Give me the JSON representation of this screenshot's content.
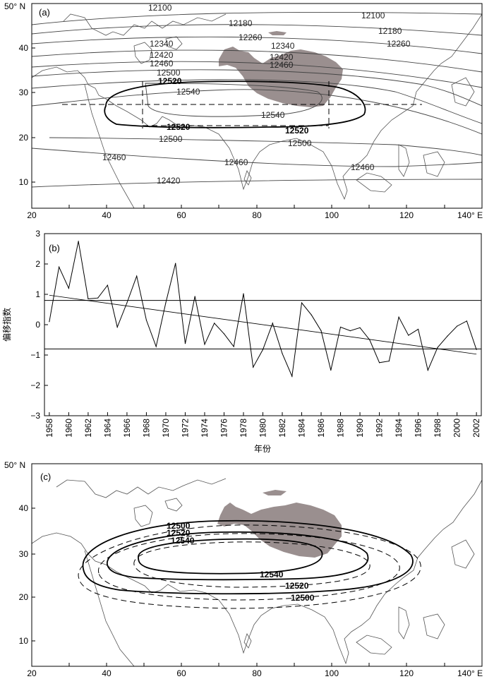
{
  "panel_a": {
    "label": "(a)",
    "y_axis_top_label": "50° N",
    "x_axis_right_label": "140° E",
    "x_ticks": [
      "20",
      "40",
      "60",
      "80",
      "100",
      "120"
    ],
    "y_ticks": [
      "10",
      "20",
      "30",
      "40"
    ],
    "contour_labels": [
      "12100",
      "12100",
      "12180",
      "12180",
      "12260",
      "12260",
      "12340",
      "12340",
      "12420",
      "12420",
      "12460",
      "12460",
      "12500",
      "12520",
      "12540",
      "12540",
      "12520",
      "12520",
      "12500",
      "12500",
      "12460",
      "12460",
      "12460",
      "12420"
    ]
  },
  "panel_b": {
    "label": "(b)",
    "ylabel": "偏移指数",
    "xlabel": "年份",
    "x_ticks": [
      "1958",
      "1960",
      "1962",
      "1964",
      "1966",
      "1968",
      "1970",
      "1972",
      "1974",
      "1976",
      "1978",
      "1980",
      "1982",
      "1984",
      "1986",
      "1988",
      "1990",
      "1992",
      "1994",
      "1996",
      "1998",
      "2000",
      "2002"
    ],
    "y_ticks": [
      "3",
      "2",
      "1",
      "0",
      "−1",
      "−2",
      "−3"
    ]
  },
  "panel_c": {
    "label": "(c)",
    "y_axis_top_label": "50° N",
    "x_axis_right_label": "140° E",
    "x_ticks": [
      "20",
      "40",
      "60",
      "80",
      "100",
      "120"
    ],
    "y_ticks": [
      "10",
      "20",
      "30",
      "40"
    ],
    "contour_labels": [
      "12500",
      "12520",
      "12540",
      "12540",
      "12520",
      "12500"
    ]
  },
  "chart_data": [
    {
      "type": "line",
      "panel": "b",
      "x": [
        1958,
        1959,
        1960,
        1961,
        1962,
        1963,
        1964,
        1965,
        1966,
        1967,
        1968,
        1969,
        1970,
        1971,
        1972,
        1973,
        1974,
        1975,
        1976,
        1977,
        1978,
        1979,
        1980,
        1981,
        1982,
        1983,
        1984,
        1985,
        1986,
        1987,
        1988,
        1989,
        1990,
        1991,
        1992,
        1993,
        1994,
        1995,
        1996,
        1997,
        1998,
        1999,
        2000,
        2001,
        2002
      ],
      "series": [
        {
          "values": [
            0.1,
            1.9,
            1.2,
            2.75,
            0.85,
            0.88,
            1.3,
            -0.08,
            0.72,
            1.6,
            0.15,
            -0.72,
            0.72,
            2.02,
            -0.62,
            0.93,
            -0.65,
            0.05,
            -0.3,
            -0.72,
            1.02,
            -1.4,
            -0.82,
            0.05,
            -0.95,
            -1.7,
            0.72,
            0.32,
            -0.2,
            -1.5,
            -0.08,
            -0.2,
            -0.1,
            -0.5,
            -1.25,
            -1.2,
            0.25,
            -0.35,
            -0.15,
            -1.5,
            -0.75,
            -0.38,
            -0.05,
            0.12,
            -0.82
          ]
        }
      ],
      "trend": {
        "x": [
          1958,
          2002
        ],
        "y": [
          0.97,
          -0.97
        ]
      },
      "thresholds": [
        0.8,
        -0.8
      ],
      "xlim": [
        1957.5,
        2002.5
      ],
      "ylim": [
        -3,
        3
      ],
      "xlabel": "年份",
      "ylabel": "偏移指数",
      "grid": false
    }
  ]
}
